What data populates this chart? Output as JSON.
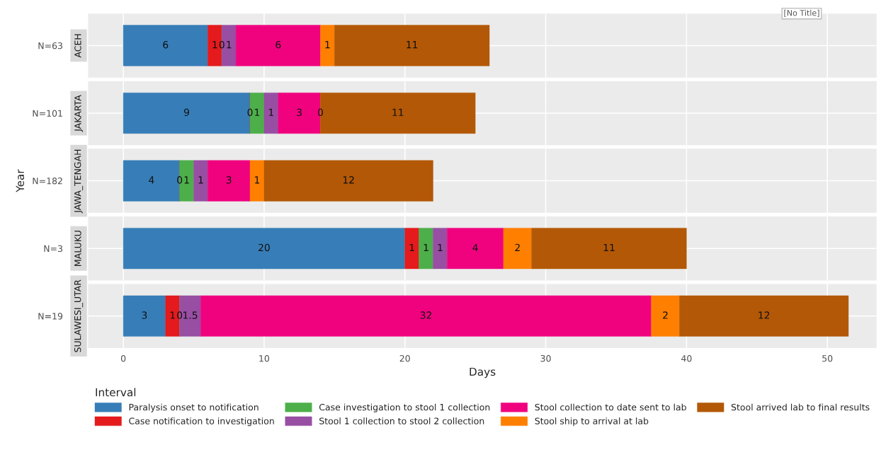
{
  "chart_data": [
    {
      "type": "bar",
      "orientation": "horizontal",
      "stacked": true,
      "title": "ACEH",
      "categories": [
        "N=63"
      ],
      "xlim": [
        -2.5,
        53.5
      ],
      "xticks": [
        0,
        10,
        20,
        30,
        40,
        50
      ],
      "tick_labels": "y",
      "grid": true,
      "data_labels": true,
      "annotations": [
        "[No Title]"
      ],
      "series": [
        {
          "color": "#377eb8",
          "values": [
            6
          ]
        },
        {
          "color": "#e41a1c",
          "values": [
            1
          ]
        },
        {
          "color": "#4daf4a",
          "values": [
            0
          ]
        },
        {
          "color": "#984ea3",
          "values": [
            1
          ]
        },
        {
          "color": "#f0027f",
          "values": [
            6
          ]
        },
        {
          "color": "#ff7f00",
          "values": [
            1
          ]
        },
        {
          "color": "#b35806",
          "values": [
            11
          ]
        }
      ]
    },
    {
      "type": "bar",
      "orientation": "horizontal",
      "stacked": true,
      "title": "JAKARTA",
      "categories": [
        "N=101"
      ],
      "xlim": [
        -2.5,
        53.5
      ],
      "xticks": [
        0,
        10,
        20,
        30,
        40,
        50
      ],
      "tick_labels": "y",
      "grid": true,
      "data_labels": true,
      "series": [
        {
          "color": "#377eb8",
          "values": [
            9
          ]
        },
        {
          "color": "#e41a1c",
          "values": [
            0
          ]
        },
        {
          "color": "#4daf4a",
          "values": [
            1
          ]
        },
        {
          "color": "#984ea3",
          "values": [
            1
          ]
        },
        {
          "color": "#f0027f",
          "values": [
            3
          ]
        },
        {
          "color": "#ff7f00",
          "values": [
            0
          ]
        },
        {
          "color": "#b35806",
          "values": [
            11
          ]
        }
      ]
    },
    {
      "type": "bar",
      "orientation": "horizontal",
      "stacked": true,
      "title": "JAWA_TENGAH",
      "ylabel": "Year",
      "categories": [
        "N=182"
      ],
      "xlim": [
        -2.5,
        53.5
      ],
      "xticks": [
        0,
        10,
        20,
        30,
        40,
        50
      ],
      "tick_labels": "y",
      "grid": true,
      "data_labels": true,
      "series": [
        {
          "color": "#377eb8",
          "values": [
            4
          ]
        },
        {
          "color": "#e41a1c",
          "values": [
            0
          ]
        },
        {
          "color": "#4daf4a",
          "values": [
            1
          ]
        },
        {
          "color": "#984ea3",
          "values": [
            1
          ]
        },
        {
          "color": "#f0027f",
          "values": [
            3
          ]
        },
        {
          "color": "#ff7f00",
          "values": [
            1
          ]
        },
        {
          "color": "#b35806",
          "values": [
            12
          ]
        }
      ]
    },
    {
      "type": "bar",
      "orientation": "horizontal",
      "stacked": true,
      "title": "MALUKU",
      "categories": [
        "N=3"
      ],
      "xlim": [
        -2.5,
        53.5
      ],
      "xticks": [
        0,
        10,
        20,
        30,
        40,
        50
      ],
      "tick_labels": "y",
      "grid": true,
      "data_labels": true,
      "series": [
        {
          "color": "#377eb8",
          "values": [
            20
          ]
        },
        {
          "color": "#e41a1c",
          "values": [
            1
          ]
        },
        {
          "color": "#4daf4a",
          "values": [
            1
          ]
        },
        {
          "color": "#984ea3",
          "values": [
            1
          ]
        },
        {
          "color": "#f0027f",
          "values": [
            4
          ]
        },
        {
          "color": "#ff7f00",
          "values": [
            2
          ]
        },
        {
          "color": "#b35806",
          "values": [
            11
          ]
        }
      ]
    },
    {
      "type": "bar",
      "orientation": "horizontal",
      "stacked": true,
      "title": "SULAWESI_UTAR",
      "xlabel": "Days",
      "categories": [
        "N=19"
      ],
      "xlim": [
        -2.5,
        53.5
      ],
      "xticks": [
        0,
        10,
        20,
        30,
        40,
        50
      ],
      "grid": true,
      "data_labels": true,
      "legend": "bottom",
      "legend_title": "Interval",
      "series": [
        {
          "name": "Paralysis onset to notification",
          "color": "#377eb8",
          "values": [
            3
          ]
        },
        {
          "name": "Case notification to investigation",
          "color": "#e41a1c",
          "values": [
            1
          ]
        },
        {
          "name": "Case investigation to stool 1 collection",
          "color": "#4daf4a",
          "values": [
            0
          ]
        },
        {
          "name": "Stool 1 collection to stool 2 collection",
          "color": "#984ea3",
          "values": [
            1.5
          ]
        },
        {
          "name": "Stool collection to date sent to lab",
          "color": "#f0027f",
          "values": [
            32
          ]
        },
        {
          "name": "Stool ship to arrival at lab",
          "color": "#ff7f00",
          "values": [
            2
          ]
        },
        {
          "name": "Stool arrived lab to final results",
          "color": "#b35806",
          "values": [
            12
          ]
        }
      ]
    }
  ]
}
